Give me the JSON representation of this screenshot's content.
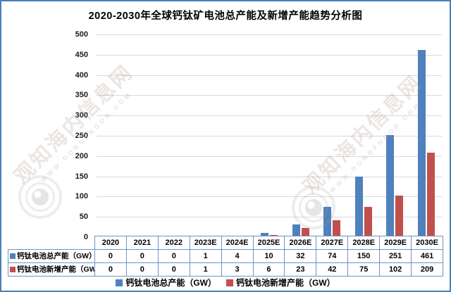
{
  "title": "2020-2030年全球钙钛矿电池总产能及新增产能趋势分析图",
  "chart_data": {
    "type": "bar",
    "categories": [
      "2020",
      "2021",
      "2022",
      "2023E",
      "2024E",
      "2025E",
      "2026E",
      "2027E",
      "2028E",
      "2029E",
      "2030E"
    ],
    "series": [
      {
        "name": "钙钛电池总产能（GW）",
        "color": "#4f81bd",
        "values": [
          0,
          0,
          0,
          1,
          4,
          10,
          32,
          74,
          150,
          251,
          461
        ]
      },
      {
        "name": "钙钛电池新增产能（GW）",
        "color": "#c0504d",
        "values": [
          0,
          0,
          0,
          1,
          3,
          6,
          23,
          42,
          75,
          102,
          209
        ]
      }
    ],
    "title": "2020-2030年全球钙钛矿电池总产能及新增产能趋势分析图",
    "xlabel": "",
    "ylabel": "",
    "ylim": [
      0,
      500
    ],
    "ytick_step": 50,
    "yticks": [
      0,
      50,
      100,
      150,
      200,
      250,
      300,
      350,
      400,
      450,
      500
    ],
    "grid": true,
    "legend_position": "bottom",
    "data_table_shown": true
  },
  "colors": {
    "total_series": "#4f81bd",
    "new_series": "#c0504d",
    "frame_border": "#4a7ebb",
    "table_border": "#6f94c3",
    "gridline": "#d9d9d9"
  },
  "watermark": {
    "site_name": "观知海内信息网",
    "url_text": "WWW.DONGFNGOR.COM"
  }
}
